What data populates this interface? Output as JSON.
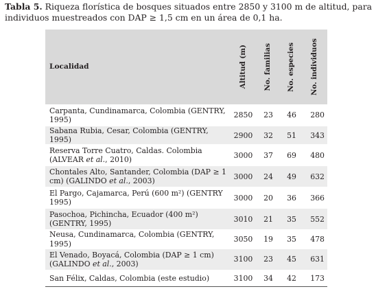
{
  "caption": {
    "label": "Tabla 5.",
    "text": "Riqueza florística de bosques situados entre 2850 y 3100 m de altitud, para individuos muestreados con DAP ≥ 1,5 cm en un área de 0,1 ha."
  },
  "table": {
    "headers": {
      "localidad": "Localidad",
      "altitud": "Altitud (m)",
      "familias": "No. familias",
      "especies": "No. especies",
      "individuos": "No. individuos"
    },
    "rows": [
      {
        "loc_parts": [
          "Carpanta, Cundinamarca, Colombia (GENTRY, 1995)"
        ],
        "altitud": "2850",
        "familias": "23",
        "especies": "46",
        "individuos": "280"
      },
      {
        "loc_parts": [
          "Sabana Rubia, Cesar, Colombia (GENTRY, 1995)"
        ],
        "altitud": "2900",
        "familias": "32",
        "especies": "51",
        "individuos": "343"
      },
      {
        "loc_parts": [
          "Reserva Torre Cuatro, Caldas. Colombia (ALVEAR ",
          "et al.",
          ", 2010)"
        ],
        "altitud": "3000",
        "familias": "37",
        "especies": "69",
        "individuos": "480"
      },
      {
        "loc_parts": [
          "Chontales Alto, Santander, Colombia (DAP ≥ 1 cm) (GALINDO ",
          "et al.",
          ", 2003)"
        ],
        "altitud": "3000",
        "familias": "24",
        "especies": "49",
        "individuos": "632"
      },
      {
        "loc_parts": [
          "El Pargo, Cajamarca, Perú (600 m²) (GENTRY 1995)"
        ],
        "altitud": "3000",
        "familias": "20",
        "especies": "36",
        "individuos": "366"
      },
      {
        "loc_parts": [
          "Pasochoa, Pichincha, Ecuador (400 m²) (GENTRY, 1995)"
        ],
        "altitud": "3010",
        "familias": "21",
        "especies": "35",
        "individuos": "552"
      },
      {
        "loc_parts": [
          "Neusa, Cundinamarca, Colombia (GENTRY, 1995)"
        ],
        "altitud": "3050",
        "familias": "19",
        "especies": "35",
        "individuos": "478"
      },
      {
        "loc_parts": [
          "El Venado, Boyacá, Colombia (DAP ≥ 1 cm) (GALINDO ",
          "et al.",
          ", 2003)"
        ],
        "altitud": "3100",
        "familias": "23",
        "especies": "45",
        "individuos": "631"
      },
      {
        "loc_parts": [
          "San Félix, Caldas, Colombia (este estudio)"
        ],
        "altitud": "3100",
        "familias": "34",
        "especies": "42",
        "individuos": "173"
      }
    ]
  }
}
